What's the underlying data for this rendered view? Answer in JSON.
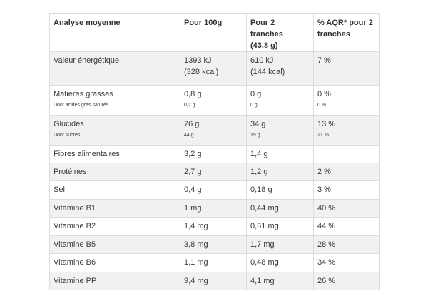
{
  "headers": {
    "col1": "Analyse moyenne",
    "col2": "Pour 100g",
    "col3_line1": "Pour 2 tranches",
    "col3_line2": "(43,8 g)",
    "col4_line1": "% AQR* pour 2",
    "col4_line2": "tranches"
  },
  "rows": {
    "energy": {
      "label": "Valeur énergétique",
      "per100_line1": "1393 kJ",
      "per100_line2": "(328 kcal)",
      "per2_line1": "610 kJ",
      "per2_line2": "(144 kcal)",
      "aqr": "7 %"
    },
    "fat": {
      "label": "Matières grasses",
      "sublabel": "Dont acides gras saturés",
      "per100": "0,8 g",
      "per100_sub": "0,2 g",
      "per2": "0 g",
      "per2_sub": "0 g",
      "aqr": "0 %",
      "aqr_sub": "0 %"
    },
    "carbs": {
      "label": "Glucides",
      "sublabel": "Dont sucres",
      "per100": "76 g",
      "per100_sub": "44 g",
      "per2": "34 g",
      "per2_sub": "19 g",
      "aqr": "13 %",
      "aqr_sub": "21 %"
    },
    "fiber": {
      "label": "Fibres alimentaires",
      "per100": "3,2 g",
      "per2": "1,4 g",
      "aqr": ""
    },
    "protein": {
      "label": "Protéines",
      "per100": "2,7 g",
      "per2": "1,2 g",
      "aqr": "2 %"
    },
    "salt": {
      "label": "Sel",
      "per100": "0,4 g",
      "per2": "0,18 g",
      "aqr": "3 %"
    },
    "b1": {
      "label": "Vitamine B1",
      "per100": "1 mg",
      "per2": "0,44 mg",
      "aqr": "40 %"
    },
    "b2": {
      "label": "Vitamine B2",
      "per100": "1,4 mg",
      "per2": "0,61 mg",
      "aqr": "44 %"
    },
    "b5": {
      "label": "Vitamine B5",
      "per100": "3,8 mg",
      "per2": "1,7 mg",
      "aqr": "28 %"
    },
    "b6": {
      "label": "Vitamine B6",
      "per100": "1,1 mg",
      "per2": "0,48 mg",
      "aqr": "34 %"
    },
    "pp": {
      "label": "Vitamine PP",
      "per100": "9,4 mg",
      "per2": "4,1 mg",
      "aqr": "26 %"
    }
  }
}
